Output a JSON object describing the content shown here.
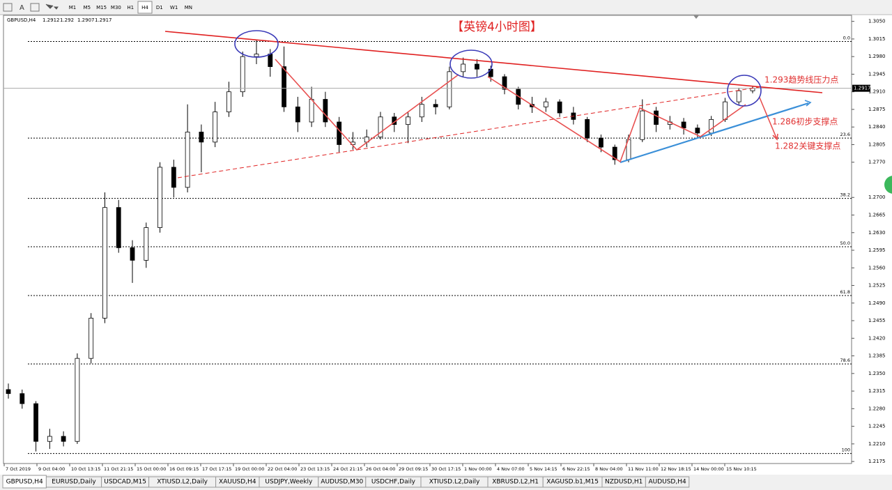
{
  "toolbar": {
    "timeframes": [
      "M1",
      "M5",
      "M15",
      "M30",
      "H1",
      "H4",
      "D1",
      "W1",
      "MN"
    ],
    "active": 5
  },
  "chart_data": {
    "type": "candlestick",
    "symbol": "GBPUSD,H4",
    "title": "【英镑4小时图】",
    "categories": [
      "7 Oct 2019",
      "9 Oct 04:00",
      "10 Oct 13:15",
      "11 Oct 21:15",
      "15 Oct 00:00",
      "16 Oct 09:15",
      "17 Oct 17:15",
      "19 Oct 00:00",
      "22 Oct 04:00",
      "23 Oct 13:15",
      "24 Oct 21:15",
      "26 Oct 04:00",
      "29 Oct 09:15",
      "30 Oct 17:15",
      "1 Nov 00:00",
      "4 Nov 07:00",
      "5 Nov 14:15",
      "6 Nov 22:15",
      "8 Nov 04:00",
      "11 Nov 11:00",
      "12 Nov 18:15",
      "14 Nov 00:00",
      "15 Nov 10:15"
    ],
    "candles": [
      [
        1.2318,
        1.233,
        1.23,
        1.231
      ],
      [
        1.231,
        1.2318,
        1.228,
        1.229
      ],
      [
        1.229,
        1.2295,
        1.2195,
        1.2215
      ],
      [
        1.2215,
        1.224,
        1.22,
        1.2225
      ],
      [
        1.2225,
        1.2235,
        1.2205,
        1.2215
      ],
      [
        1.2215,
        1.239,
        1.221,
        1.238
      ],
      [
        1.238,
        1.247,
        1.237,
        1.246
      ],
      [
        1.246,
        1.271,
        1.245,
        1.268
      ],
      [
        1.268,
        1.2695,
        1.259,
        1.26
      ],
      [
        1.26,
        1.2615,
        1.253,
        1.2575
      ],
      [
        1.2575,
        1.265,
        1.256,
        1.264
      ],
      [
        1.264,
        1.277,
        1.263,
        1.276
      ],
      [
        1.276,
        1.2775,
        1.27,
        1.272
      ],
      [
        1.272,
        1.2885,
        1.271,
        1.283
      ],
      [
        1.283,
        1.2845,
        1.275,
        1.281
      ],
      [
        1.281,
        1.289,
        1.28,
        1.287
      ],
      [
        1.287,
        1.293,
        1.286,
        1.291
      ],
      [
        1.291,
        1.299,
        1.29,
        1.298
      ],
      [
        1.298,
        1.3013,
        1.2965,
        1.2985
      ],
      [
        1.2985,
        1.2995,
        1.294,
        1.296
      ],
      [
        1.296,
        1.3,
        1.287,
        1.288
      ],
      [
        1.288,
        1.29,
        1.283,
        1.285
      ],
      [
        1.285,
        1.292,
        1.284,
        1.2895
      ],
      [
        1.2895,
        1.291,
        1.284,
        1.285
      ],
      [
        1.285,
        1.286,
        1.279,
        1.2805
      ],
      [
        1.2805,
        1.283,
        1.2795,
        1.281
      ],
      [
        1.281,
        1.2835,
        1.28,
        1.282
      ],
      [
        1.282,
        1.287,
        1.2815,
        1.286
      ],
      [
        1.286,
        1.2868,
        1.283,
        1.2845
      ],
      [
        1.2845,
        1.287,
        1.2808,
        1.286
      ],
      [
        1.286,
        1.29,
        1.285,
        1.2885
      ],
      [
        1.2885,
        1.2895,
        1.2865,
        1.288
      ],
      [
        1.288,
        1.296,
        1.2875,
        1.295
      ],
      [
        1.295,
        1.2978,
        1.294,
        1.2965
      ],
      [
        1.2965,
        1.2975,
        1.294,
        1.2955
      ],
      [
        1.2955,
        1.2962,
        1.293,
        1.294
      ],
      [
        1.294,
        1.2945,
        1.2905,
        1.2915
      ],
      [
        1.2915,
        1.292,
        1.2875,
        1.2885
      ],
      [
        1.2885,
        1.29,
        1.2868,
        1.288
      ],
      [
        1.288,
        1.2898,
        1.287,
        1.289
      ],
      [
        1.289,
        1.2895,
        1.286,
        1.2868
      ],
      [
        1.2868,
        1.288,
        1.2845,
        1.2855
      ],
      [
        1.2855,
        1.286,
        1.281,
        1.2818
      ],
      [
        1.2818,
        1.2825,
        1.279,
        1.28
      ],
      [
        1.28,
        1.2805,
        1.2765,
        1.2775
      ],
      [
        1.2775,
        1.2825,
        1.277,
        1.2815
      ],
      [
        1.2815,
        1.2895,
        1.281,
        1.2872
      ],
      [
        1.2872,
        1.288,
        1.283,
        1.2845
      ],
      [
        1.2845,
        1.2862,
        1.2835,
        1.285
      ],
      [
        1.285,
        1.2858,
        1.2825,
        1.2838
      ],
      [
        1.2838,
        1.2845,
        1.2818,
        1.2828
      ],
      [
        1.2828,
        1.2862,
        1.2822,
        1.2855
      ],
      [
        1.2855,
        1.2898,
        1.285,
        1.289
      ],
      [
        1.289,
        1.2918,
        1.2885,
        1.2912
      ],
      [
        1.2912,
        1.292,
        1.2907,
        1.2917
      ]
    ],
    "ylim": [
      1.2171,
      1.3062
    ],
    "yticks": [
      {
        "value": 1.305,
        "label": "1.3050"
      },
      {
        "value": 1.3015,
        "label": "1.3015"
      },
      {
        "value": 1.298,
        "label": "1.2980"
      },
      {
        "value": 1.2945,
        "label": "1.2945"
      },
      {
        "value": 1.291,
        "label": "1.2910"
      },
      {
        "value": 1.2875,
        "label": "1.2875"
      },
      {
        "value": 1.284,
        "label": "1.2840"
      },
      {
        "value": 1.2805,
        "label": "1.2805"
      },
      {
        "value": 1.277,
        "label": "1.2770"
      },
      {
        "value": 1.27,
        "label": "1.2700"
      },
      {
        "value": 1.2665,
        "label": "1.2665"
      },
      {
        "value": 1.263,
        "label": "1.2630"
      },
      {
        "value": 1.2595,
        "label": "1.2595"
      },
      {
        "value": 1.256,
        "label": "1.2560"
      },
      {
        "value": 1.2525,
        "label": "1.2525"
      },
      {
        "value": 1.249,
        "label": "1.2490"
      },
      {
        "value": 1.2455,
        "label": "1.2455"
      },
      {
        "value": 1.242,
        "label": "1.2420"
      },
      {
        "value": 1.2385,
        "label": "1.2385"
      },
      {
        "value": 1.235,
        "label": "1.2350"
      },
      {
        "value": 1.2315,
        "label": "1.2315"
      },
      {
        "value": 1.228,
        "label": "1.2280"
      },
      {
        "value": 1.2245,
        "label": "1.2245"
      },
      {
        "value": 1.221,
        "label": "1.2210"
      },
      {
        "value": 1.2175,
        "label": "1.2175"
      }
    ],
    "fib_levels": [
      {
        "value": 1.301,
        "label": "0.0"
      },
      {
        "value": 1.2818,
        "label": "23.6"
      },
      {
        "value": 1.2698,
        "label": "38.2"
      },
      {
        "value": 1.2602,
        "label": "50.0"
      },
      {
        "value": 1.2505,
        "label": "61.8"
      },
      {
        "value": 1.2369,
        "label": "78.6"
      },
      {
        "value": 1.2191,
        "label": "100"
      }
    ],
    "annotations": [
      "1.293趋势线压力点",
      "1.286初步支撑点",
      "1.282关键支撑点"
    ]
  },
  "tabs": [
    "GBPUSD,H4",
    "EURUSD,Daily",
    "USDCAD,M15",
    "XTIUSD.L2,Daily",
    "XAUUSD,H4",
    "USDJPY,Weekly",
    "AUDUSD,M30",
    "USDCHF,Daily",
    "XTIUSD.L2,Daily",
    "XBRUSD.L2,H1",
    "XAGUSD.b1,M15",
    "NZDUSD,H1",
    "AUDUSD,H4"
  ]
}
